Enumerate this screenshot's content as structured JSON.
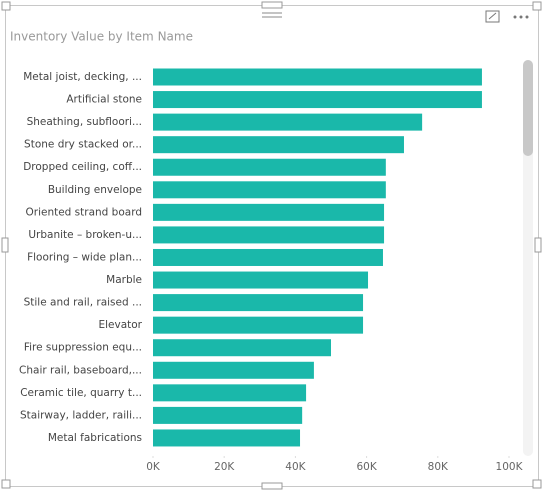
{
  "chart_data": {
    "type": "hbar",
    "title": "Inventory Value by Item Name",
    "categories": [
      "Metal joist, decking, ...",
      "Artificial stone",
      "Sheathing, subfloori...",
      "Stone dry stacked or...",
      "Dropped ceiling, coff...",
      "Building envelope",
      "Oriented strand board",
      "Urbanite – broken-u...",
      "Flooring – wide plan...",
      "Marble",
      "Stile and rail, raised ...",
      "Elevator",
      "Fire suppression equ...",
      "Chair rail, baseboard,...",
      "Ceramic tile, quarry t...",
      "Stairway, ladder, raili...",
      "Metal fabrications"
    ],
    "values": [
      92400,
      92400,
      75600,
      70500,
      65400,
      65400,
      64900,
      64900,
      64600,
      60400,
      59000,
      59000,
      50000,
      45200,
      43000,
      41900,
      41300
    ],
    "color": "#1ab8aa",
    "xlim": [
      0,
      100000
    ],
    "xticks": [
      {
        "value": 0,
        "label": "0K"
      },
      {
        "value": 20000,
        "label": "20K"
      },
      {
        "value": 40000,
        "label": "40K"
      },
      {
        "value": 60000,
        "label": "60K"
      },
      {
        "value": 80000,
        "label": "80K"
      },
      {
        "value": 100000,
        "label": "100K"
      }
    ]
  }
}
